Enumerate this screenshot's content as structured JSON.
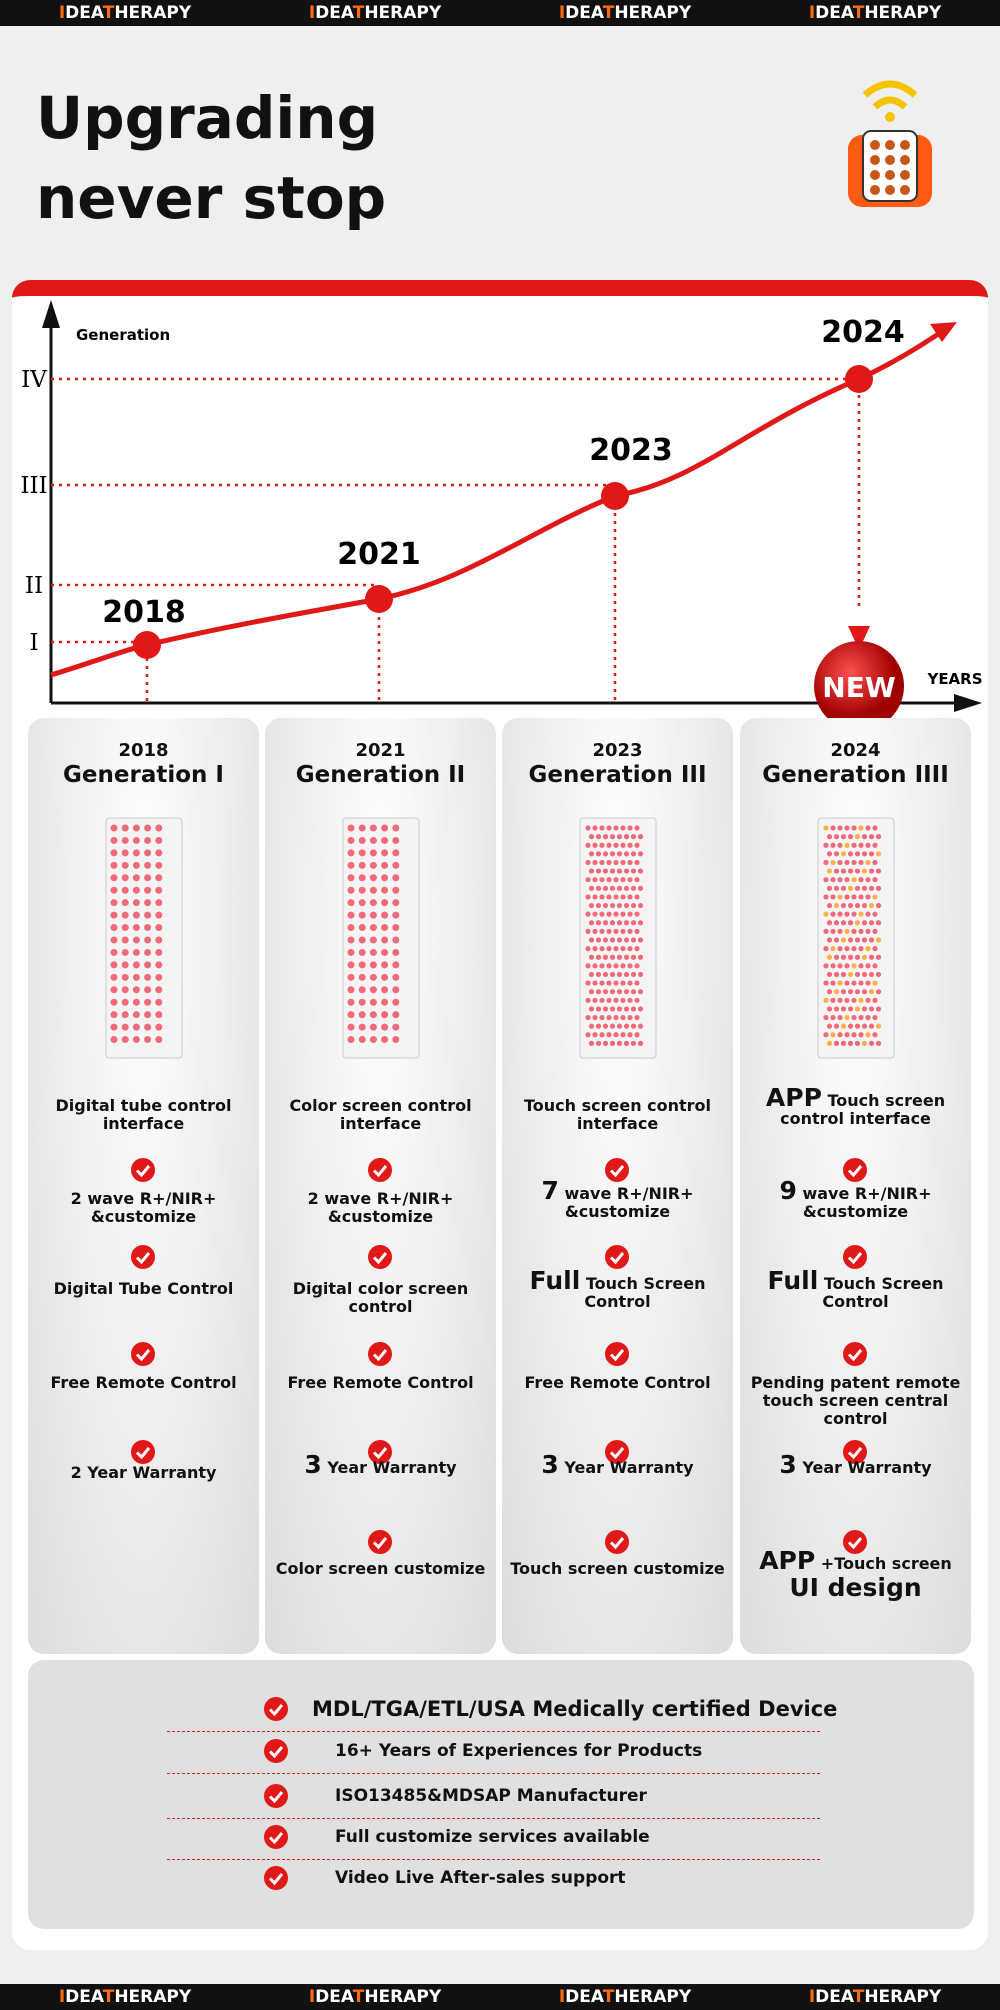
{
  "brand": [
    "I",
    "DEA",
    "T",
    "HERAPY"
  ],
  "title": [
    "Upgrading",
    "never stop"
  ],
  "timeline": {
    "y_label": "Generation",
    "y_ticks": [
      "I",
      "II",
      "III",
      "IV"
    ],
    "x_label": "YEARS",
    "years": [
      "2018",
      "2021",
      "2023",
      "2024"
    ],
    "badge": "NEW"
  },
  "columns": [
    {
      "year": "2018",
      "name": "Generation I",
      "features": [
        "Digital tube control interface",
        "2 wave R+/NIR+ &customize",
        "Digital Tube Control",
        "Free Remote Control",
        "2 Year Warranty"
      ]
    },
    {
      "year": "2021",
      "name": "Generation II",
      "features": [
        "Color screen control interface",
        "2 wave R+/NIR+ &customize",
        "Digital color screen control",
        "Free Remote Control",
        {
          "lead": "3",
          "text": "Year Warranty"
        },
        "Color screen customize"
      ]
    },
    {
      "year": "2023",
      "name": "Generation III",
      "features": [
        "Touch screen control interface",
        {
          "lead": "7",
          "text": "wave R+/NIR+ &customize"
        },
        {
          "lead": "Full",
          "text": "Touch Screen Control"
        },
        "Free Remote Control",
        {
          "lead": "3",
          "text": "Year Warranty"
        },
        "Touch screen customize"
      ]
    },
    {
      "year": "2024",
      "name": "Generation IIII",
      "features": [
        {
          "lead": "APP",
          "text": "Touch screen control interface"
        },
        {
          "lead": "9",
          "text": "wave R+/NIR+ &customize"
        },
        {
          "lead": "Full",
          "text": "Touch Screen Control"
        },
        "Pending patent remote touch screen central control",
        {
          "lead": "3",
          "text": "Year Warranty"
        },
        {
          "lead": "APP",
          "text": "+Touch screen",
          "tail": "UI design"
        }
      ]
    }
  ],
  "certifications": [
    "MDL/TGA/ETL/USA Medically certified Device",
    "16+ Years of Experiences for Products",
    "ISO13485&MDSAP Manufacturer",
    "Full customize services available",
    "Video Live After-sales support"
  ]
}
